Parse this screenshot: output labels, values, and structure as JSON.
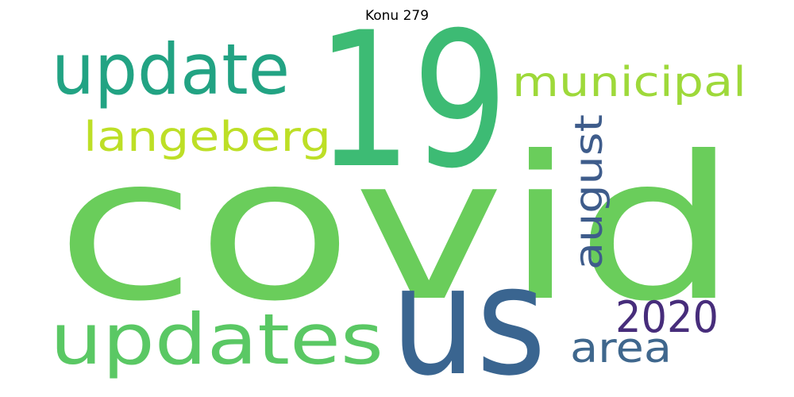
{
  "title": "Konu 279",
  "words": [
    {
      "id": "covid",
      "text": "covid",
      "color": "#6acd5b"
    },
    {
      "id": "19",
      "text": "19",
      "color": "#3dbb74"
    },
    {
      "id": "us",
      "text": "us",
      "color": "#3a6590"
    },
    {
      "id": "update",
      "text": "update",
      "color": "#22a383"
    },
    {
      "id": "updates",
      "text": "updates",
      "color": "#5ac864"
    },
    {
      "id": "municipal",
      "text": "municipal",
      "color": "#9ed93a"
    },
    {
      "id": "langeberg",
      "text": "langeberg",
      "color": "#bddf26"
    },
    {
      "id": "august",
      "text": "august",
      "color": "#3e5c8b"
    },
    {
      "id": "2020",
      "text": "2020",
      "color": "#472d7b"
    },
    {
      "id": "area",
      "text": "area",
      "color": "#3f678d"
    }
  ]
}
